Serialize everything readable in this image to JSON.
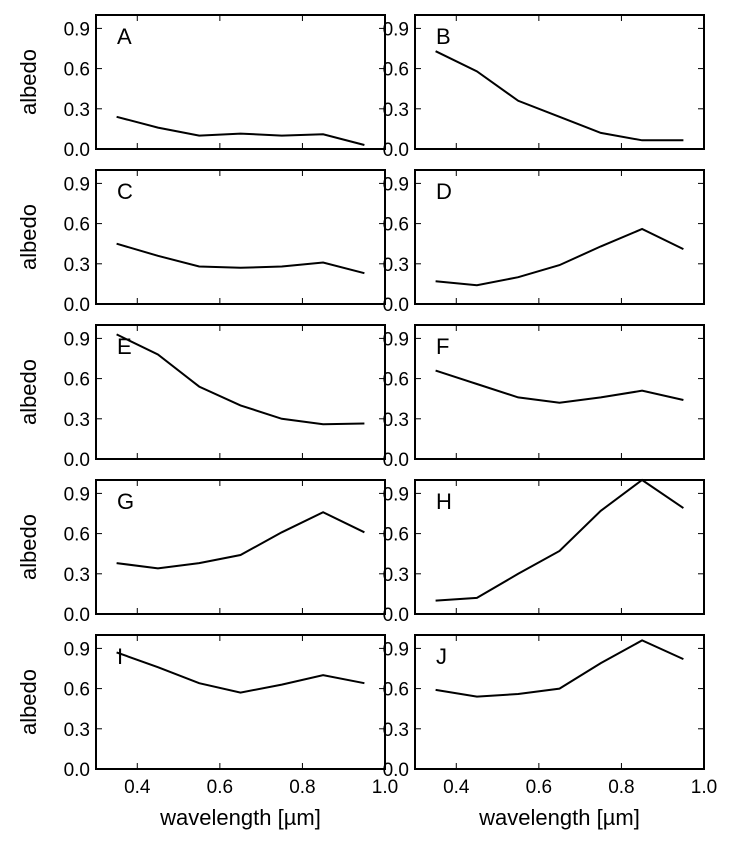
{
  "figure": {
    "xlabel": "wavelength [µm]",
    "ylabel": "albedo"
  },
  "chart_data": [
    {
      "panel": "A",
      "type": "line",
      "x": [
        0.35,
        0.45,
        0.55,
        0.65,
        0.75,
        0.85,
        0.95
      ],
      "y": [
        0.24,
        0.16,
        0.1,
        0.115,
        0.1,
        0.11,
        0.03
      ],
      "xlim": [
        0.3,
        1.0
      ],
      "ylim": [
        0.0,
        1.0
      ],
      "xticks": [
        0.4,
        0.6,
        0.8,
        1.0
      ],
      "yticks": [
        0.0,
        0.3,
        0.6,
        0.9
      ],
      "xlabel": "",
      "ylabel": "albedo"
    },
    {
      "panel": "B",
      "type": "line",
      "x": [
        0.35,
        0.45,
        0.55,
        0.65,
        0.75,
        0.85,
        0.95
      ],
      "y": [
        0.73,
        0.58,
        0.36,
        0.24,
        0.12,
        0.065,
        0.065
      ],
      "xlim": [
        0.3,
        1.0
      ],
      "ylim": [
        0.0,
        1.0
      ],
      "xticks": [
        0.4,
        0.6,
        0.8,
        1.0
      ],
      "yticks": [
        0.0,
        0.3,
        0.6,
        0.9
      ],
      "xlabel": "",
      "ylabel": ""
    },
    {
      "panel": "C",
      "type": "line",
      "x": [
        0.35,
        0.45,
        0.55,
        0.65,
        0.75,
        0.85,
        0.95
      ],
      "y": [
        0.45,
        0.36,
        0.28,
        0.27,
        0.28,
        0.31,
        0.23
      ],
      "xlim": [
        0.3,
        1.0
      ],
      "ylim": [
        0.0,
        1.0
      ],
      "xticks": [
        0.4,
        0.6,
        0.8,
        1.0
      ],
      "yticks": [
        0.0,
        0.3,
        0.6,
        0.9
      ],
      "xlabel": "",
      "ylabel": "albedo"
    },
    {
      "panel": "D",
      "type": "line",
      "x": [
        0.35,
        0.45,
        0.55,
        0.65,
        0.75,
        0.85,
        0.95
      ],
      "y": [
        0.17,
        0.14,
        0.2,
        0.29,
        0.43,
        0.56,
        0.41
      ],
      "xlim": [
        0.3,
        1.0
      ],
      "ylim": [
        0.0,
        1.0
      ],
      "xticks": [
        0.4,
        0.6,
        0.8,
        1.0
      ],
      "yticks": [
        0.0,
        0.3,
        0.6,
        0.9
      ],
      "xlabel": "",
      "ylabel": ""
    },
    {
      "panel": "E",
      "type": "line",
      "x": [
        0.35,
        0.45,
        0.55,
        0.65,
        0.75,
        0.85,
        0.95
      ],
      "y": [
        0.93,
        0.78,
        0.54,
        0.4,
        0.3,
        0.26,
        0.265
      ],
      "xlim": [
        0.3,
        1.0
      ],
      "ylim": [
        0.0,
        1.0
      ],
      "xticks": [
        0.4,
        0.6,
        0.8,
        1.0
      ],
      "yticks": [
        0.0,
        0.3,
        0.6,
        0.9
      ],
      "xlabel": "",
      "ylabel": "albedo"
    },
    {
      "panel": "F",
      "type": "line",
      "x": [
        0.35,
        0.45,
        0.55,
        0.65,
        0.75,
        0.85,
        0.95
      ],
      "y": [
        0.66,
        0.56,
        0.46,
        0.42,
        0.46,
        0.51,
        0.44
      ],
      "xlim": [
        0.3,
        1.0
      ],
      "ylim": [
        0.0,
        1.0
      ],
      "xticks": [
        0.4,
        0.6,
        0.8,
        1.0
      ],
      "yticks": [
        0.0,
        0.3,
        0.6,
        0.9
      ],
      "xlabel": "",
      "ylabel": ""
    },
    {
      "panel": "G",
      "type": "line",
      "x": [
        0.35,
        0.45,
        0.55,
        0.65,
        0.75,
        0.85,
        0.95
      ],
      "y": [
        0.38,
        0.34,
        0.38,
        0.44,
        0.61,
        0.76,
        0.61
      ],
      "xlim": [
        0.3,
        1.0
      ],
      "ylim": [
        0.0,
        1.0
      ],
      "xticks": [
        0.4,
        0.6,
        0.8,
        1.0
      ],
      "yticks": [
        0.0,
        0.3,
        0.6,
        0.9
      ],
      "xlabel": "",
      "ylabel": "albedo"
    },
    {
      "panel": "H",
      "type": "line",
      "x": [
        0.35,
        0.45,
        0.55,
        0.65,
        0.75,
        0.85,
        0.95
      ],
      "y": [
        0.1,
        0.12,
        0.3,
        0.47,
        0.77,
        1.0,
        0.79
      ],
      "xlim": [
        0.3,
        1.0
      ],
      "ylim": [
        0.0,
        1.0
      ],
      "xticks": [
        0.4,
        0.6,
        0.8,
        1.0
      ],
      "yticks": [
        0.0,
        0.3,
        0.6,
        0.9
      ],
      "xlabel": "",
      "ylabel": ""
    },
    {
      "panel": "I",
      "type": "line",
      "x": [
        0.35,
        0.45,
        0.55,
        0.65,
        0.75,
        0.85,
        0.95
      ],
      "y": [
        0.87,
        0.76,
        0.64,
        0.57,
        0.63,
        0.7,
        0.64
      ],
      "xlim": [
        0.3,
        1.0
      ],
      "ylim": [
        0.0,
        1.0
      ],
      "xticks": [
        0.4,
        0.6,
        0.8,
        1.0
      ],
      "yticks": [
        0.0,
        0.3,
        0.6,
        0.9
      ],
      "xlabel": "wavelength [µm]",
      "ylabel": "albedo"
    },
    {
      "panel": "J",
      "type": "line",
      "x": [
        0.35,
        0.45,
        0.55,
        0.65,
        0.75,
        0.85,
        0.95
      ],
      "y": [
        0.59,
        0.54,
        0.56,
        0.6,
        0.79,
        0.96,
        0.82
      ],
      "xlim": [
        0.3,
        1.0
      ],
      "ylim": [
        0.0,
        1.0
      ],
      "xticks": [
        0.4,
        0.6,
        0.8,
        1.0
      ],
      "yticks": [
        0.0,
        0.3,
        0.6,
        0.9
      ],
      "xlabel": "wavelength [µm]",
      "ylabel": ""
    }
  ]
}
